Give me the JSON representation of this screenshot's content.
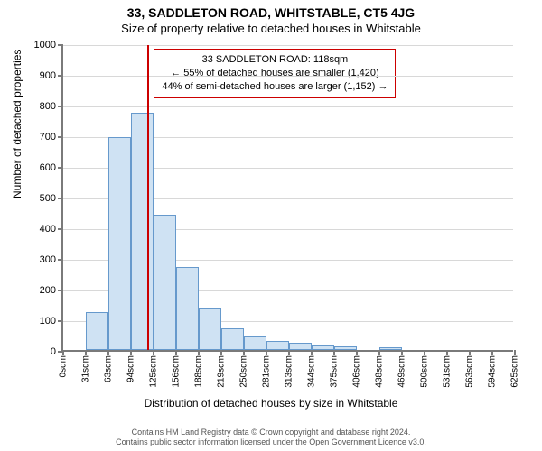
{
  "title": "33, SADDLETON ROAD, WHITSTABLE, CT5 4JG",
  "subtitle": "Size of property relative to detached houses in Whitstable",
  "ylabel": "Number of detached properties",
  "xlabel": "Distribution of detached houses by size in Whitstable",
  "footer1": "Contains HM Land Registry data © Crown copyright and database right 2024.",
  "footer2": "Contains public sector information licensed under the Open Government Licence v3.0.",
  "chart": {
    "type": "histogram",
    "ylim": [
      0,
      1000
    ],
    "ytick_step": 100,
    "yticks": [
      0,
      100,
      200,
      300,
      400,
      500,
      600,
      700,
      800,
      900,
      1000
    ],
    "xlim": [
      0,
      625
    ],
    "xtick_step": 31.25,
    "x_unit": "sqm",
    "xticks": [
      0,
      31,
      63,
      94,
      125,
      156,
      188,
      219,
      250,
      281,
      313,
      344,
      375,
      406,
      438,
      469,
      500,
      531,
      563,
      594,
      625
    ],
    "bar_fill": "#cfe2f3",
    "bar_stroke": "#6699cc",
    "grid_color": "#d8d8d8",
    "axis_color": "#7a7a7a",
    "background": "#ffffff",
    "bars": [
      {
        "x0": 0,
        "x1": 31,
        "y": 0
      },
      {
        "x0": 31,
        "x1": 63,
        "y": 125
      },
      {
        "x0": 63,
        "x1": 94,
        "y": 695
      },
      {
        "x0": 94,
        "x1": 125,
        "y": 775
      },
      {
        "x0": 125,
        "x1": 156,
        "y": 440
      },
      {
        "x0": 156,
        "x1": 188,
        "y": 270
      },
      {
        "x0": 188,
        "x1": 219,
        "y": 135
      },
      {
        "x0": 219,
        "x1": 250,
        "y": 70
      },
      {
        "x0": 250,
        "x1": 281,
        "y": 45
      },
      {
        "x0": 281,
        "x1": 313,
        "y": 30
      },
      {
        "x0": 313,
        "x1": 344,
        "y": 23
      },
      {
        "x0": 344,
        "x1": 375,
        "y": 15
      },
      {
        "x0": 375,
        "x1": 406,
        "y": 12
      },
      {
        "x0": 406,
        "x1": 438,
        "y": 0
      },
      {
        "x0": 438,
        "x1": 469,
        "y": 8
      },
      {
        "x0": 469,
        "x1": 500,
        "y": 0
      },
      {
        "x0": 500,
        "x1": 531,
        "y": 0
      },
      {
        "x0": 531,
        "x1": 563,
        "y": 0
      },
      {
        "x0": 563,
        "x1": 594,
        "y": 0
      },
      {
        "x0": 594,
        "x1": 625,
        "y": 0
      }
    ],
    "marker": {
      "x": 118,
      "color": "#cc0000"
    },
    "annotation": {
      "line1": "33 SADDLETON ROAD: 118sqm",
      "line2": "← 55% of detached houses are smaller (1,420)",
      "line3": "44% of semi-detached houses are larger (1,152) →",
      "border_color": "#cc0000",
      "background": "#ffffff"
    }
  },
  "label_fontsize": 12,
  "tick_fontsize": 11,
  "title_fontsize": 14
}
